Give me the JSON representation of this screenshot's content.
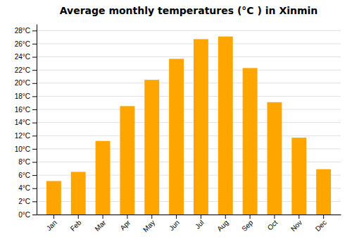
{
  "chart_data": {
    "type": "bar",
    "title": "Average monthly temperatures (°C ) in Xinmin",
    "categories": [
      "Jan",
      "Feb",
      "Mar",
      "Apr",
      "May",
      "Jun",
      "Jul",
      "Aug",
      "Sep",
      "Oct",
      "Nov",
      "Dec"
    ],
    "values": [
      5.1,
      6.5,
      11.2,
      16.5,
      20.5,
      23.7,
      26.7,
      27.1,
      22.3,
      17.1,
      11.7,
      6.9
    ],
    "color": "#FFA500",
    "ylim": [
      0,
      29
    ],
    "yticks": [
      {
        "value": 0,
        "label": "0°C"
      },
      {
        "value": 2,
        "label": "2°C"
      },
      {
        "value": 4,
        "label": "4°C"
      },
      {
        "value": 6,
        "label": "6°C"
      },
      {
        "value": 8,
        "label": "8°C"
      },
      {
        "value": 10,
        "label": "10°C"
      },
      {
        "value": 12,
        "label": "12°C"
      },
      {
        "value": 14,
        "label": "14°C"
      },
      {
        "value": 16,
        "label": "16°C"
      },
      {
        "value": 18,
        "label": "18°C"
      },
      {
        "value": 20,
        "label": "20°C"
      },
      {
        "value": 22,
        "label": "22°C"
      },
      {
        "value": 24,
        "label": "24°C"
      },
      {
        "value": 26,
        "label": "26°C"
      },
      {
        "value": 28,
        "label": "28°C"
      }
    ],
    "grid": true
  }
}
